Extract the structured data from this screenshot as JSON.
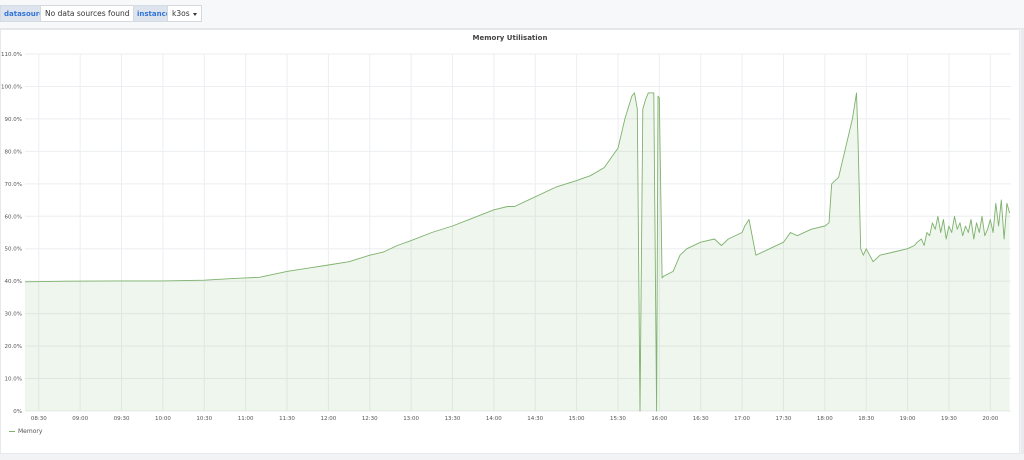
{
  "variables": [
    {
      "label": "datasource",
      "value": "No data sources found"
    },
    {
      "label": "instance",
      "value": "k3os"
    }
  ],
  "panel": {
    "title": "Memory Utilisation"
  },
  "colors": {
    "series": "#7eb26d",
    "fill": "rgba(126,178,109,0.12)",
    "grid": "#eceef1",
    "text": "#555555"
  },
  "chart_data": {
    "type": "area",
    "title": "Memory Utilisation",
    "xlabel": "",
    "ylabel": "",
    "x_ticks": [
      "08:30",
      "09:00",
      "09:30",
      "10:00",
      "10:30",
      "11:00",
      "11:30",
      "12:00",
      "12:30",
      "13:00",
      "13:30",
      "14:00",
      "14:30",
      "15:00",
      "15:30",
      "16:00",
      "16:30",
      "17:00",
      "17:30",
      "18:00",
      "18:30",
      "19:00",
      "19:30",
      "20:00"
    ],
    "y_ticks": [
      "0%",
      "10.0%",
      "20.0%",
      "30.0%",
      "40.0%",
      "50.0%",
      "60.0%",
      "70.0%",
      "80.0%",
      "90.0%",
      "100.0%",
      "110.0%"
    ],
    "xlim": [
      "08:20",
      "20:15"
    ],
    "ylim": [
      0,
      110
    ],
    "grid": true,
    "legend_position": "bottom-left",
    "series": [
      {
        "name": "Memory",
        "color": "#7eb26d",
        "x": [
          "08:20",
          "08:50",
          "09:30",
          "10:00",
          "10:30",
          "10:50",
          "11:00",
          "11:10",
          "11:30",
          "11:45",
          "12:00",
          "12:15",
          "12:30",
          "12:40",
          "12:50",
          "13:00",
          "13:15",
          "13:30",
          "13:45",
          "14:00",
          "14:10",
          "14:15",
          "14:30",
          "14:45",
          "15:00",
          "15:10",
          "15:20",
          "15:30",
          "15:35",
          "15:40",
          "15:42",
          "15:44",
          "15:46",
          "15:48",
          "15:50",
          "15:52",
          "15:54",
          "15:56",
          "15:58",
          "15:59",
          "16:00",
          "16:02",
          "16:03",
          "16:10",
          "16:15",
          "16:20",
          "16:30",
          "16:40",
          "16:45",
          "16:50",
          "17:00",
          "17:02",
          "17:05",
          "17:10",
          "17:20",
          "17:30",
          "17:35",
          "17:40",
          "17:50",
          "18:00",
          "18:03",
          "18:05",
          "18:10",
          "18:20",
          "18:23",
          "18:24",
          "18:26",
          "18:28",
          "18:30",
          "18:35",
          "18:40",
          "18:50",
          "19:00",
          "19:05",
          "19:07",
          "19:10",
          "19:12",
          "19:14",
          "19:16",
          "19:18",
          "19:20",
          "19:22",
          "19:24",
          "19:26",
          "19:28",
          "19:30",
          "19:32",
          "19:34",
          "19:36",
          "19:38",
          "19:40",
          "19:42",
          "19:44",
          "19:46",
          "19:48",
          "19:50",
          "19:52",
          "19:54",
          "19:56",
          "19:58",
          "20:00",
          "20:02",
          "20:04",
          "20:06",
          "20:08",
          "20:10",
          "20:12",
          "20:14"
        ],
        "values": [
          39.8,
          40,
          40.1,
          40.1,
          40.3,
          40.8,
          41,
          41.2,
          43,
          44,
          45,
          46,
          48,
          49,
          51,
          52.5,
          55,
          57,
          59.5,
          62,
          63,
          63,
          66,
          69,
          71,
          72.5,
          75,
          81,
          90,
          97,
          98,
          93,
          0,
          93,
          96,
          98,
          98,
          98,
          0,
          97,
          96.5,
          41,
          41.5,
          43,
          48,
          50,
          52,
          53,
          51,
          53,
          55,
          57,
          59,
          48,
          50,
          52,
          55,
          54,
          56,
          57,
          58,
          70,
          72,
          90,
          98,
          85,
          50,
          48,
          50,
          46,
          48,
          49,
          50,
          51,
          52,
          53,
          51,
          55,
          54,
          58,
          56,
          60,
          55,
          59,
          53,
          57,
          55,
          60,
          56,
          58,
          54,
          57,
          55,
          59,
          53,
          58,
          55,
          60,
          54,
          56,
          59,
          55,
          64,
          57,
          65,
          53,
          64,
          61
        ]
      }
    ]
  }
}
